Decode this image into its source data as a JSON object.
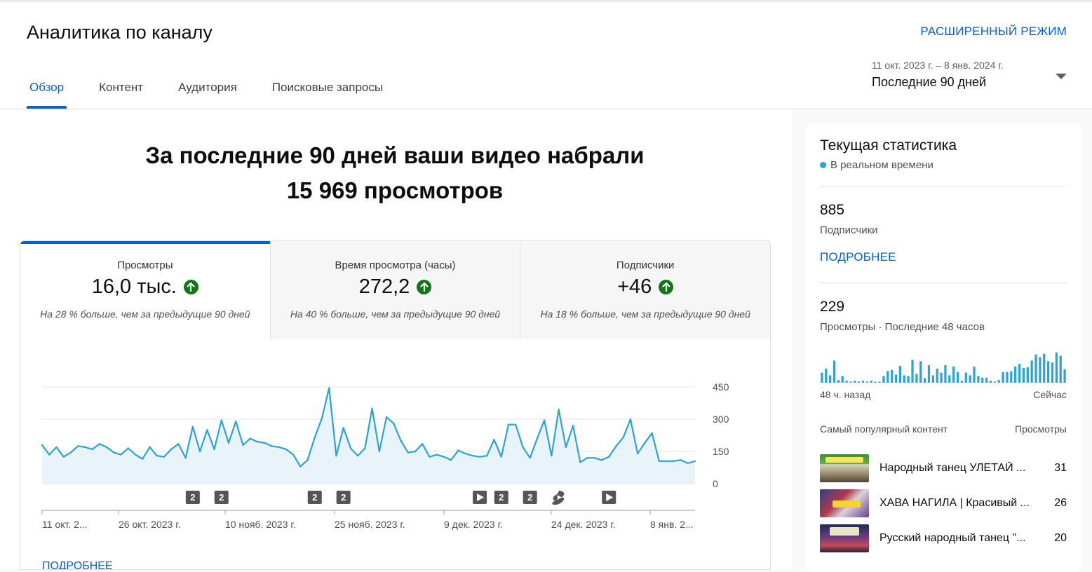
{
  "header": {
    "title": "Аналитика по каналу",
    "advanced_mode": "РАСШИРЕННЫЙ РЕЖИМ",
    "tabs": [
      {
        "label": "Обзор",
        "active": true
      },
      {
        "label": "Контент",
        "active": false
      },
      {
        "label": "Аудитория",
        "active": false
      },
      {
        "label": "Поисковые запросы",
        "active": false
      }
    ],
    "date_range": {
      "dates": "11 окт. 2023 г. – 8 янв. 2024 г.",
      "label": "Последние 90 дней"
    }
  },
  "overview": {
    "headline_line1": "За последние 90 дней ваши видео набрали",
    "headline_line2": "15 969 просмотров",
    "metrics": [
      {
        "label": "Просмотры",
        "value": "16,0 тыс.",
        "note": "На 28 % больше, чем за предыдущие 90 дней",
        "active": true
      },
      {
        "label": "Время просмотра (часы)",
        "value": "272,2",
        "note": "На 40 % больше, чем за предыдущие 90 дней",
        "active": false
      },
      {
        "label": "Подписчики",
        "value": "+46",
        "note": "На 18 % больше, чем за предыдущие 90 дней",
        "active": false
      }
    ],
    "more_link": "ПОДРОБНЕЕ"
  },
  "chart_data": {
    "type": "area",
    "series": [
      {
        "values": [
          180,
          135,
          170,
          125,
          145,
          175,
          170,
          160,
          185,
          170,
          145,
          135,
          165,
          135,
          115,
          170,
          130,
          125,
          160,
          185,
          120,
          265,
          150,
          250,
          160,
          295,
          190,
          290,
          180,
          210,
          195,
          190,
          175,
          170,
          160,
          135,
          80,
          110,
          215,
          305,
          445,
          130,
          260,
          165,
          130,
          165,
          350,
          150,
          310,
          280,
          200,
          145,
          150,
          185,
          125,
          135,
          125,
          110,
          155,
          140,
          130,
          125,
          130,
          205,
          125,
          275,
          275,
          170,
          120,
          210,
          295,
          130,
          345,
          170,
          270,
          100,
          120,
          120,
          110,
          125,
          175,
          215,
          300,
          140,
          190,
          235,
          105,
          105,
          105,
          110,
          95,
          105
        ]
      }
    ],
    "x_ticks": [
      "11 окт. 2...",
      "26 окт. 2023 г.",
      "10 нояб. 2023 г.",
      "25 нояб. 2023 г.",
      "9 дек. 2023 г.",
      "24 дек. 2023 г.",
      "8 янв. 2..."
    ],
    "y_ticks": [
      "450",
      "300",
      "150",
      "0"
    ],
    "ylim": [
      0,
      450
    ],
    "grid": true,
    "markers": [
      {
        "index": 21,
        "kind": "count",
        "label": "2"
      },
      {
        "index": 25,
        "kind": "count",
        "label": "2"
      },
      {
        "index": 38,
        "kind": "count",
        "label": "2"
      },
      {
        "index": 42,
        "kind": "count",
        "label": "2"
      },
      {
        "index": 61,
        "kind": "video-icon"
      },
      {
        "index": 64,
        "kind": "count",
        "label": "2"
      },
      {
        "index": 68,
        "kind": "count",
        "label": "2"
      },
      {
        "index": 72,
        "kind": "shorts-icon"
      },
      {
        "index": 79,
        "kind": "video-icon"
      }
    ],
    "colors": {
      "line": "#2ba3d4",
      "fill": "#e8f4fa",
      "grid": "#e5e5e5"
    }
  },
  "sidebar": {
    "title": "Текущая статистика",
    "realtime": "В реальном времени",
    "subscribers": {
      "value": "885",
      "label": "Подписчики",
      "link": "ПОДРОБНЕЕ"
    },
    "views48": {
      "value": "229",
      "label": "Просмотры · Последние 48 часов",
      "bars": [
        0.3,
        0.42,
        0.22,
        0.66,
        0.08,
        0.2,
        0.06,
        0,
        0.06,
        0,
        0.06,
        0,
        0.06,
        0,
        0,
        0.2,
        0.35,
        0.38,
        0.24,
        0.5,
        0.22,
        0.2,
        0.68,
        0.26,
        0.64,
        0.14,
        0.52,
        0.22,
        0.42,
        0.3,
        0.52,
        0.22,
        0.48,
        0.32,
        0.06,
        0.3,
        0.22,
        0.48,
        0.2,
        0.15,
        0.15,
        0.06,
        0,
        0.08,
        0.32,
        0.32,
        0.34,
        0.48,
        0.56,
        0.44,
        0.46,
        0.66,
        0.84,
        0.76,
        0.86,
        0.64,
        0.6,
        0.9,
        0.8,
        0.4
      ],
      "left_label": "48 ч. назад",
      "right_label": "Сейчас"
    },
    "top_content": {
      "heading": "Самый популярный контент",
      "views_heading": "Просмотры",
      "items": [
        {
          "title": "Народный танец УЛЕТАЙ ...",
          "views": "31"
        },
        {
          "title": "ХАВА НАГИЛА | Красивый ...",
          "views": "26"
        },
        {
          "title": "Русский народный танец \"...",
          "views": "20"
        }
      ]
    }
  }
}
